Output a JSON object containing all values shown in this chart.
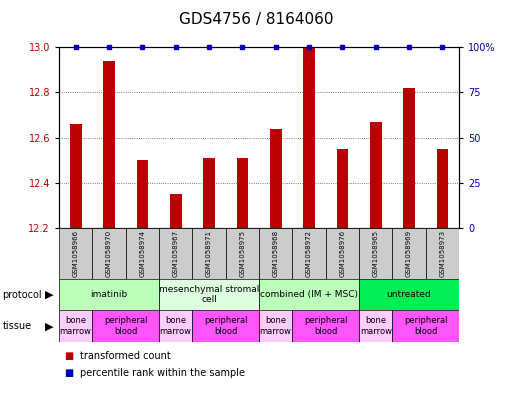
{
  "title": "GDS4756 / 8164060",
  "samples": [
    "GSM1058966",
    "GSM1058970",
    "GSM1058974",
    "GSM1058967",
    "GSM1058971",
    "GSM1058975",
    "GSM1058968",
    "GSM1058972",
    "GSM1058976",
    "GSM1058965",
    "GSM1058969",
    "GSM1058973"
  ],
  "red_values": [
    12.66,
    12.94,
    12.5,
    12.35,
    12.51,
    12.51,
    12.64,
    13.0,
    12.55,
    12.67,
    12.82,
    12.55
  ],
  "blue_values": [
    100,
    100,
    100,
    100,
    100,
    100,
    100,
    100,
    100,
    100,
    100,
    100
  ],
  "ylim_left": [
    12.2,
    13.0
  ],
  "ylim_right": [
    0,
    100
  ],
  "yticks_left": [
    12.2,
    12.4,
    12.6,
    12.8,
    13.0
  ],
  "yticks_right": [
    0,
    25,
    50,
    75,
    100
  ],
  "ytick_right_labels": [
    "0",
    "25",
    "50",
    "75",
    "100%"
  ],
  "red_color": "#BB0000",
  "blue_color": "#0000BB",
  "grid_color": "#555555",
  "protocols": [
    {
      "label": "imatinib",
      "start": 0,
      "end": 3,
      "color": "#bbffbb"
    },
    {
      "label": "mesenchymal stromal\ncell",
      "start": 3,
      "end": 6,
      "color": "#ddffdd"
    },
    {
      "label": "combined (IM + MSC)",
      "start": 6,
      "end": 9,
      "color": "#bbffbb"
    },
    {
      "label": "untreated",
      "start": 9,
      "end": 12,
      "color": "#00ee55"
    }
  ],
  "tissues": [
    {
      "label": "bone\nmarrow",
      "start": 0,
      "end": 1,
      "color": "#ffccff"
    },
    {
      "label": "peripheral\nblood",
      "start": 1,
      "end": 3,
      "color": "#ff55ff"
    },
    {
      "label": "bone\nmarrow",
      "start": 3,
      "end": 4,
      "color": "#ffccff"
    },
    {
      "label": "peripheral\nblood",
      "start": 4,
      "end": 6,
      "color": "#ff55ff"
    },
    {
      "label": "bone\nmarrow",
      "start": 6,
      "end": 7,
      "color": "#ffccff"
    },
    {
      "label": "peripheral\nblood",
      "start": 7,
      "end": 9,
      "color": "#ff55ff"
    },
    {
      "label": "bone\nmarrow",
      "start": 9,
      "end": 10,
      "color": "#ffccff"
    },
    {
      "label": "peripheral\nblood",
      "start": 10,
      "end": 12,
      "color": "#ff55ff"
    }
  ],
  "bar_width": 0.35,
  "title_fontsize": 11,
  "tick_fontsize": 7,
  "sample_fontsize": 5,
  "proto_fontsize": 6.5,
  "tissue_fontsize": 6,
  "legend_fontsize": 7
}
